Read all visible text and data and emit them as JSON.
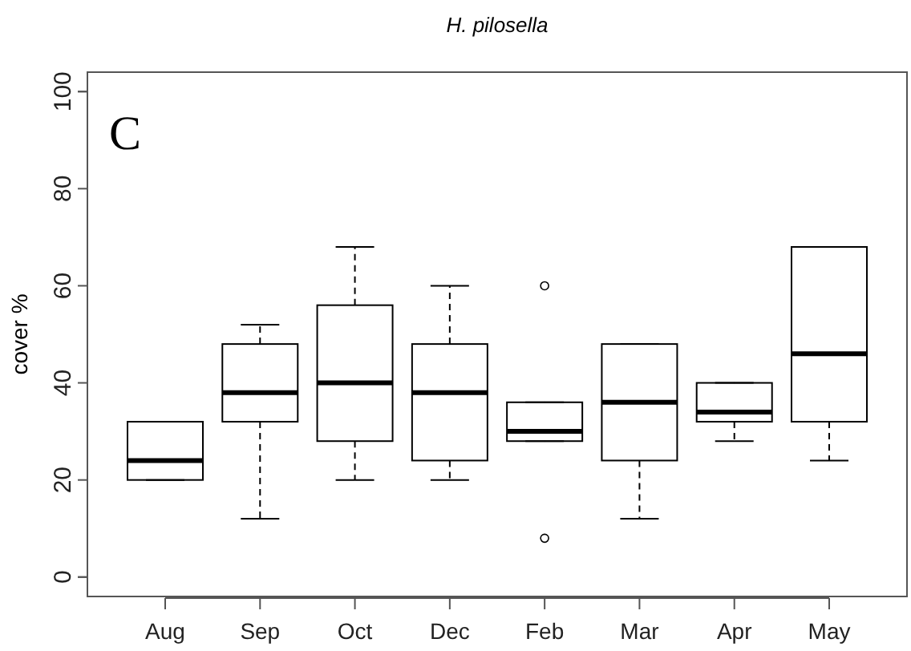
{
  "chart_data": {
    "type": "box",
    "title": "H. pilosella",
    "ylabel": "cover %",
    "annotations": [
      "C"
    ],
    "categories": [
      "Aug",
      "Sep",
      "Oct",
      "Dec",
      "Feb",
      "Mar",
      "Apr",
      "May"
    ],
    "boxes": [
      {
        "low": 20,
        "q1": 20,
        "median": 24,
        "q3": 32,
        "high": 32
      },
      {
        "low": 12,
        "q1": 32,
        "median": 38,
        "q3": 48,
        "high": 52
      },
      {
        "low": 20,
        "q1": 28,
        "median": 40,
        "q3": 56,
        "high": 68
      },
      {
        "low": 20,
        "q1": 24,
        "median": 38,
        "q3": 48,
        "high": 60
      },
      {
        "low": 28,
        "q1": 28,
        "median": 30,
        "q3": 36,
        "high": 36,
        "outliers": [
          60,
          8
        ]
      },
      {
        "low": 12,
        "q1": 24,
        "median": 36,
        "q3": 48,
        "high": 48
      },
      {
        "low": 28,
        "q1": 32,
        "median": 34,
        "q3": 40,
        "high": 40
      },
      {
        "low": 24,
        "q1": 32,
        "median": 46,
        "q3": 68,
        "high": 68
      }
    ],
    "color": "#000000",
    "ylim": [
      -4,
      104
    ],
    "yticks": [
      0,
      20,
      40,
      60,
      80,
      100
    ],
    "grid": false
  }
}
